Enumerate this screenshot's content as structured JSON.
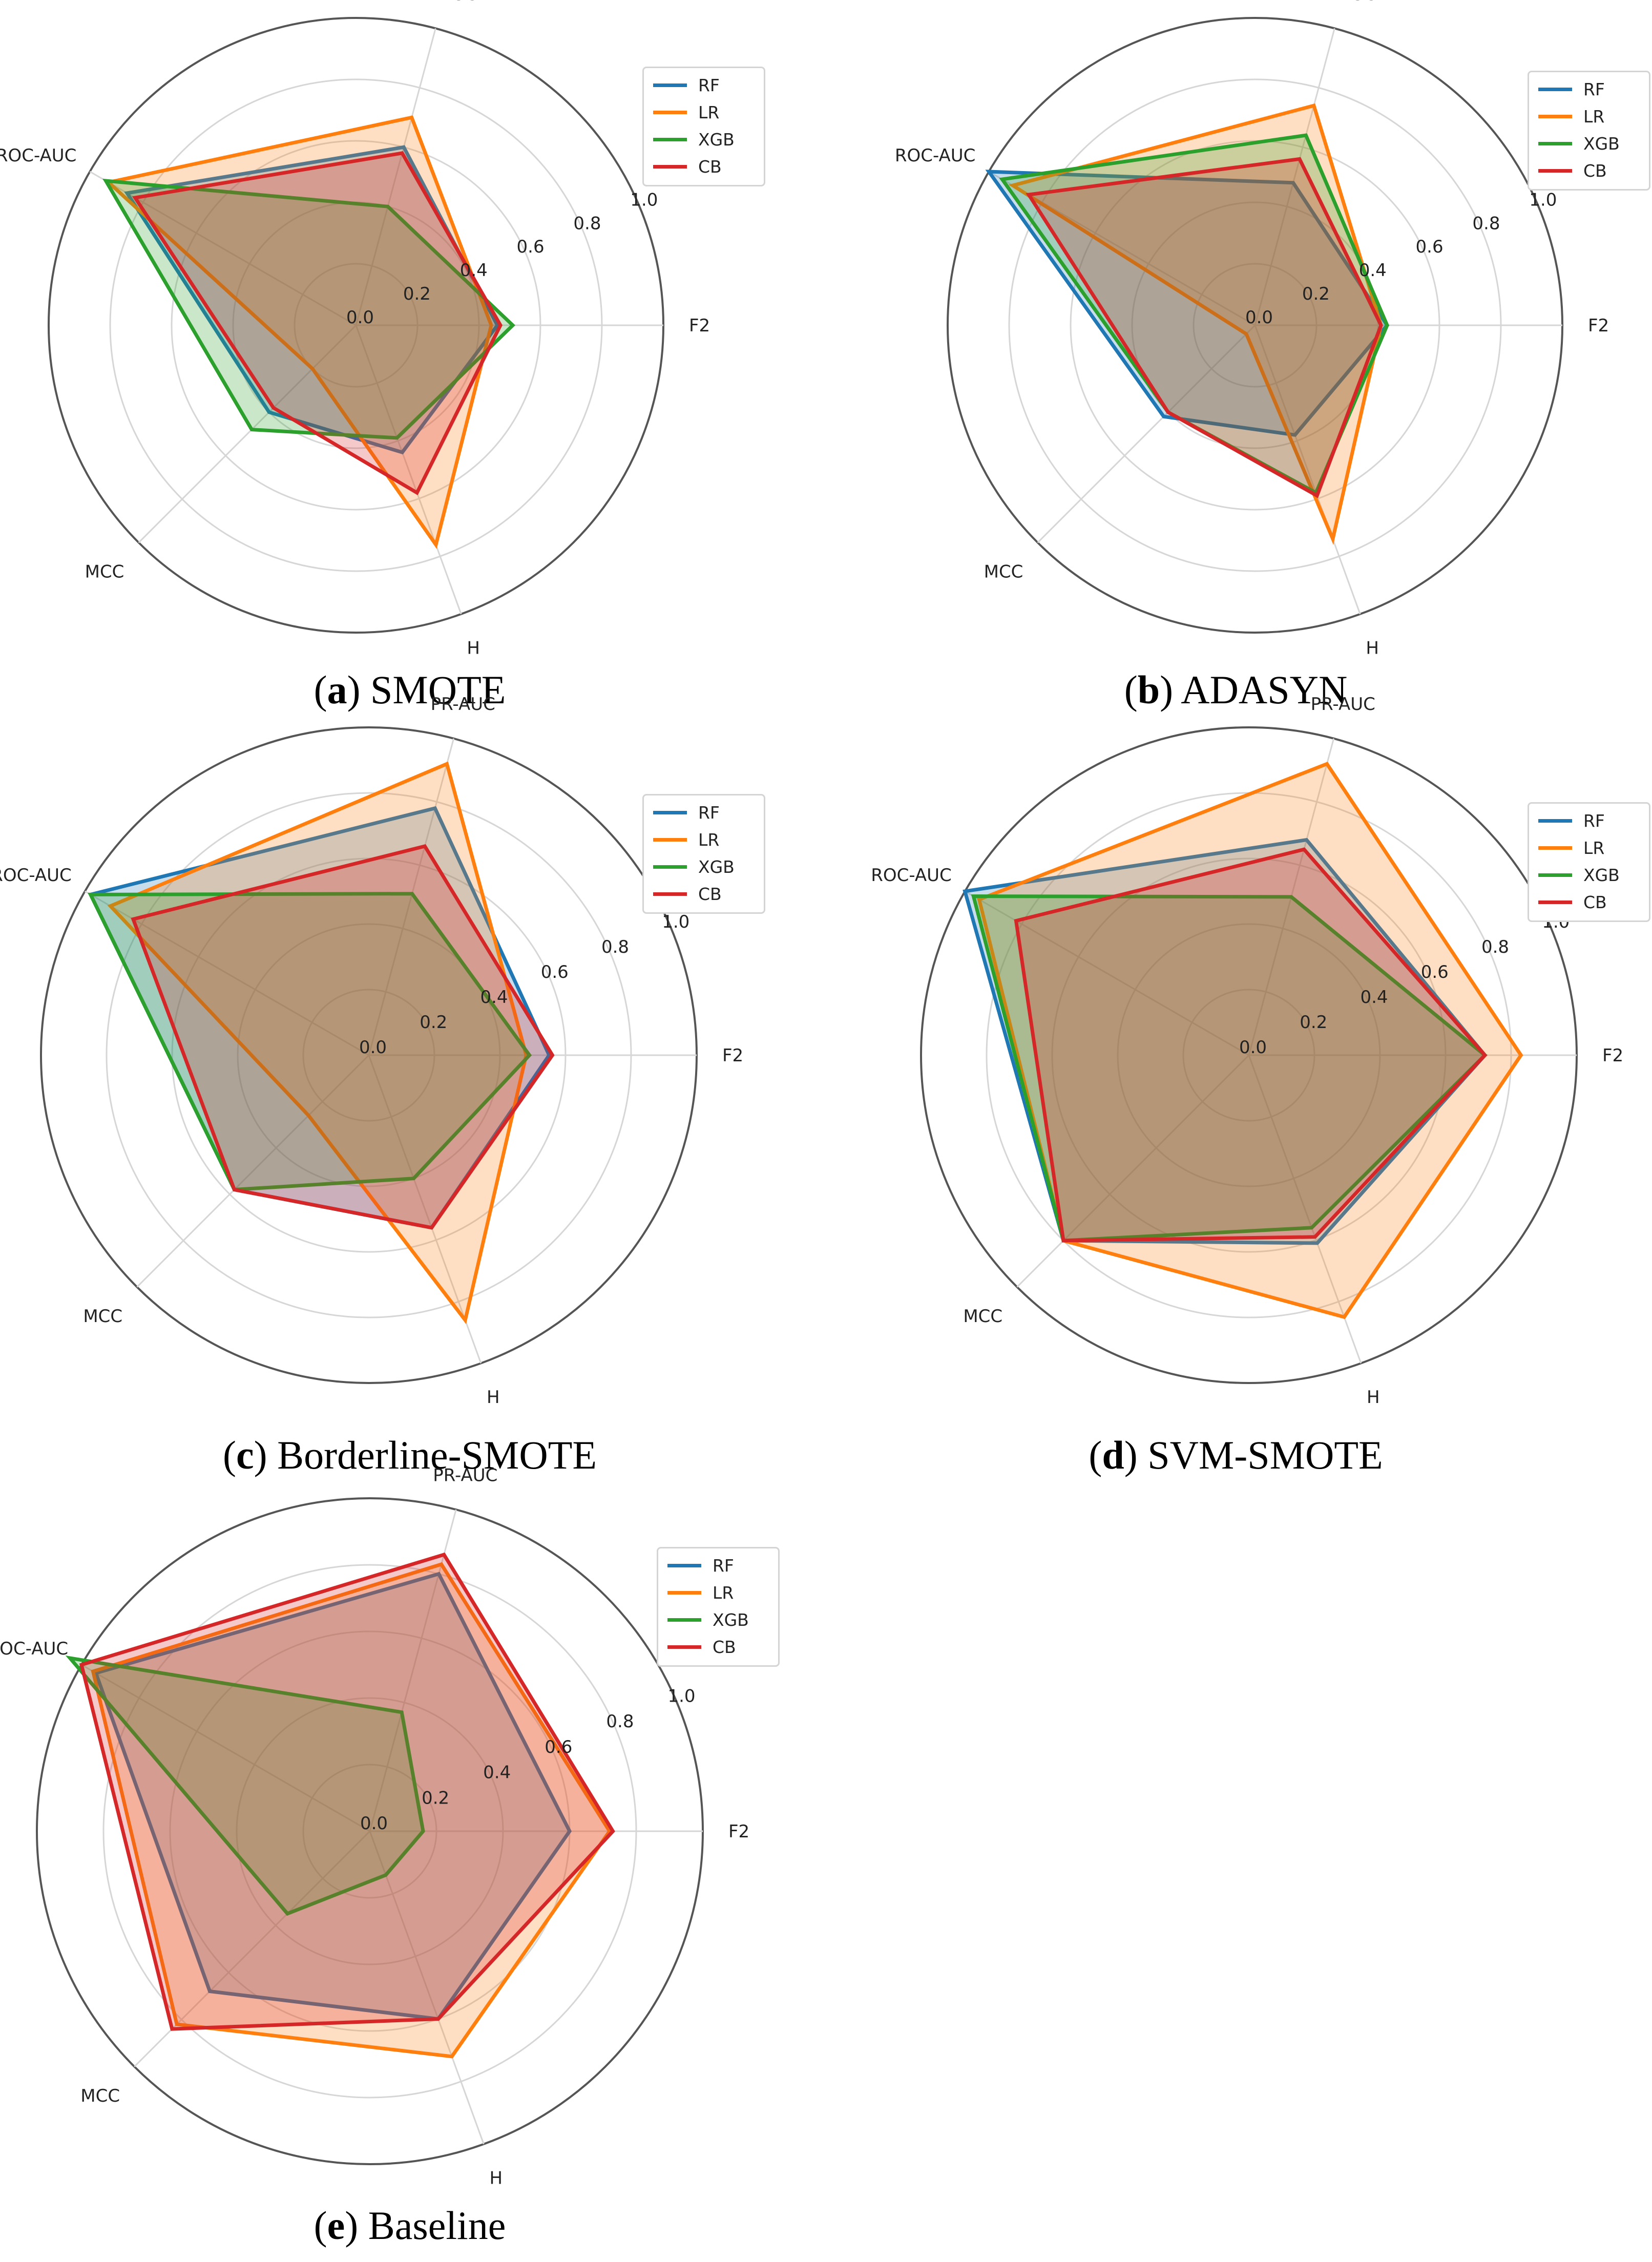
{
  "chart_data": [
    {
      "type": "radar",
      "panel_letter": "a",
      "title": "SMOTE",
      "axes": [
        "F2",
        "PR-AUC",
        "ROC-AUC",
        "MCC",
        "H"
      ],
      "radial_ticks": [
        "0.0",
        "0.2",
        "0.4",
        "0.6",
        "0.8",
        "1.0"
      ],
      "rlim": [
        0,
        1.0
      ],
      "legend_position": "top-right",
      "series": [
        {
          "name": "RF",
          "values": [
            0.46,
            0.6,
            0.86,
            0.4,
            0.44
          ]
        },
        {
          "name": "LR",
          "values": [
            0.44,
            0.7,
            0.93,
            0.2,
            0.76
          ]
        },
        {
          "name": "XGB",
          "values": [
            0.51,
            0.4,
            0.94,
            0.48,
            0.39
          ]
        },
        {
          "name": "CB",
          "values": [
            0.47,
            0.58,
            0.83,
            0.38,
            0.58
          ]
        }
      ]
    },
    {
      "type": "radar",
      "panel_letter": "b",
      "title": "ADASYN",
      "axes": [
        "F2",
        "PR-AUC",
        "ROC-AUC",
        "MCC",
        "H"
      ],
      "radial_ticks": [
        "0.0",
        "0.2",
        "0.4",
        "0.6",
        "0.8",
        "1.0"
      ],
      "rlim": [
        0,
        1.0
      ],
      "legend_position": "top-right",
      "series": [
        {
          "name": "RF",
          "values": [
            0.43,
            0.48,
            1.0,
            0.42,
            0.38
          ]
        },
        {
          "name": "LR",
          "values": [
            0.41,
            0.74,
            0.91,
            0.04,
            0.74
          ]
        },
        {
          "name": "XGB",
          "values": [
            0.43,
            0.64,
            0.95,
            0.4,
            0.58
          ]
        },
        {
          "name": "CB",
          "values": [
            0.41,
            0.56,
            0.85,
            0.4,
            0.59
          ]
        }
      ]
    },
    {
      "type": "radar",
      "panel_letter": "c",
      "title": "Borderline-SMOTE",
      "axes": [
        "F2",
        "PR-AUC",
        "ROC-AUC",
        "MCC",
        "H"
      ],
      "radial_ticks": [
        "0.0",
        "0.2",
        "0.4",
        "0.6",
        "0.8",
        "1.0"
      ],
      "rlim": [
        0,
        1.0
      ],
      "legend_position": "top-right",
      "series": [
        {
          "name": "RF",
          "values": [
            0.55,
            0.78,
            0.98,
            0.58,
            0.56
          ]
        },
        {
          "name": "LR",
          "values": [
            0.48,
            0.92,
            0.91,
            0.26,
            0.86
          ]
        },
        {
          "name": "XGB",
          "values": [
            0.49,
            0.51,
            0.98,
            0.58,
            0.4
          ]
        },
        {
          "name": "CB",
          "values": [
            0.56,
            0.66,
            0.83,
            0.58,
            0.56
          ]
        }
      ]
    },
    {
      "type": "radar",
      "panel_letter": "d",
      "title": "SVM-SMOTE",
      "axes": [
        "F2",
        "PR-AUC",
        "ROC-AUC",
        "MCC",
        "H"
      ],
      "radial_ticks": [
        "0.0",
        "0.2",
        "0.4",
        "0.6",
        "0.8",
        "1.0"
      ],
      "rlim": [
        0,
        1.0
      ],
      "legend_position": "top-right",
      "series": [
        {
          "name": "RF",
          "values": [
            0.72,
            0.68,
            1.0,
            0.8,
            0.61
          ]
        },
        {
          "name": "LR",
          "values": [
            0.83,
            0.92,
            0.95,
            0.8,
            0.85
          ]
        },
        {
          "name": "XGB",
          "values": [
            0.72,
            0.5,
            0.97,
            0.8,
            0.56
          ]
        },
        {
          "name": "CB",
          "values": [
            0.72,
            0.65,
            0.82,
            0.8,
            0.59
          ]
        }
      ]
    },
    {
      "type": "radar",
      "panel_letter": "e",
      "title": "Baseline",
      "axes": [
        "F2",
        "PR-AUC",
        "ROC-AUC",
        "MCC",
        "H"
      ],
      "radial_ticks": [
        "0.0",
        "0.2",
        "0.4",
        "0.6",
        "0.8",
        "1.0"
      ],
      "rlim": [
        0,
        1.0
      ],
      "legend_position": "top-right",
      "series": [
        {
          "name": "RF",
          "values": [
            0.6,
            0.8,
            0.95,
            0.68,
            0.6
          ]
        },
        {
          "name": "LR",
          "values": [
            0.72,
            0.83,
            0.96,
            0.82,
            0.72
          ]
        },
        {
          "name": "XGB",
          "values": [
            0.16,
            0.37,
            1.04,
            0.35,
            0.14
          ]
        },
        {
          "name": "CB",
          "values": [
            0.73,
            0.86,
            1.0,
            0.84,
            0.6
          ]
        }
      ]
    }
  ],
  "colors": {
    "RF": "#1f77b4",
    "LR": "#ff7f0e",
    "XGB": "#2ca02c",
    "CB": "#d62728"
  }
}
